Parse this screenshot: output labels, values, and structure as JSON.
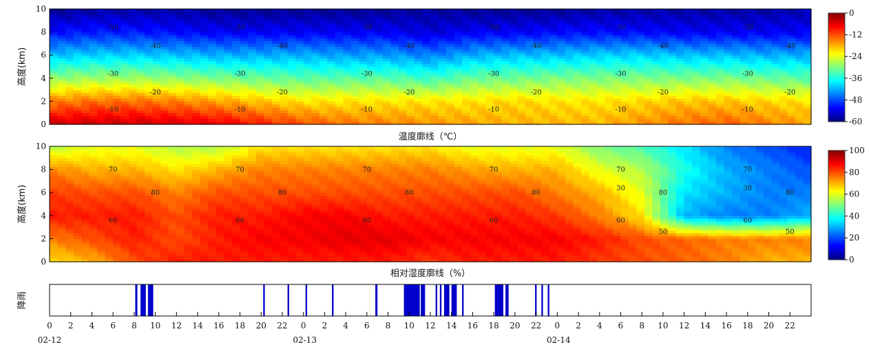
{
  "chart_data": [
    {
      "type": "heatmap",
      "title": "温度廓线（℃）",
      "ylabel": "高度(km)",
      "ylim": [
        0,
        10
      ],
      "yticks": [
        "0",
        "2",
        "4",
        "6",
        "8",
        "10"
      ],
      "x_hours": [
        0,
        4,
        8,
        12,
        16,
        20,
        24,
        28,
        32,
        36,
        40,
        44,
        48,
        52,
        56,
        60,
        64,
        68,
        72
      ],
      "y_km": [
        0,
        2,
        4,
        6,
        8,
        10
      ],
      "values": [
        [
          -4,
          -4,
          -4,
          -5,
          -6,
          -9,
          -12,
          -14,
          -15,
          -16,
          -17,
          -18,
          -18,
          -18,
          -16,
          -14,
          -13,
          -15,
          -17
        ],
        [
          -15,
          -14,
          -14,
          -15,
          -17,
          -19,
          -21,
          -21,
          -21,
          -21,
          -21,
          -20,
          -21,
          -21,
          -20,
          -19,
          -19,
          -20,
          -21
        ],
        [
          -29,
          -28,
          -28,
          -29,
          -30,
          -31,
          -32,
          -32,
          -32,
          -34,
          -31,
          -31,
          -30,
          -30,
          -30,
          -30,
          -30,
          -31,
          -32
        ],
        [
          -41,
          -40,
          -40,
          -41,
          -42,
          -42,
          -42,
          -43,
          -43,
          -45,
          -42,
          -41,
          -41,
          -40,
          -40,
          -41,
          -41,
          -42,
          -42
        ],
        [
          -52,
          -51,
          -51,
          -52,
          -53,
          -53,
          -53,
          -53,
          -53,
          -55,
          -53,
          -53,
          -52,
          -52,
          -52,
          -53,
          -53,
          -53,
          -53
        ],
        [
          -59,
          -58,
          -58,
          -58,
          -59,
          -59,
          -59,
          -59,
          -59,
          -58,
          -59,
          -59,
          -59,
          -58,
          -58,
          -58,
          -58,
          -58,
          -57
        ]
      ],
      "colorbar": {
        "range": [
          -60,
          0
        ],
        "ticks": [
          "0",
          "-12",
          "-24",
          "-36",
          "-48",
          "-60"
        ]
      },
      "contour_labels": [
        "-50",
        "-40",
        "-30",
        "-20",
        "-10"
      ]
    },
    {
      "type": "heatmap",
      "title": "相对湿度廓线（%）",
      "ylabel": "高度(km)",
      "ylim": [
        0,
        10
      ],
      "yticks": [
        "0",
        "2",
        "4",
        "6",
        "8",
        "10"
      ],
      "x_hours": [
        0,
        4,
        8,
        12,
        16,
        20,
        24,
        28,
        32,
        36,
        40,
        44,
        48,
        52,
        56,
        60,
        64,
        68,
        72
      ],
      "y_km": [
        0,
        2,
        4,
        6,
        8,
        10
      ],
      "values": [
        [
          65,
          70,
          80,
          85,
          85,
          85,
          85,
          85,
          85,
          82,
          85,
          85,
          85,
          82,
          80,
          78,
          75,
          70,
          70
        ],
        [
          75,
          80,
          85,
          80,
          85,
          88,
          88,
          90,
          90,
          88,
          88,
          88,
          88,
          85,
          80,
          78,
          75,
          75,
          75
        ],
        [
          85,
          85,
          85,
          80,
          85,
          85,
          88,
          88,
          85,
          85,
          85,
          85,
          82,
          75,
          65,
          30,
          25,
          25,
          30
        ],
        [
          82,
          80,
          80,
          75,
          80,
          80,
          80,
          80,
          80,
          80,
          80,
          80,
          75,
          70,
          60,
          35,
          30,
          25,
          25
        ],
        [
          75,
          70,
          70,
          65,
          70,
          75,
          75,
          75,
          75,
          75,
          72,
          70,
          70,
          60,
          55,
          40,
          30,
          25,
          20
        ],
        [
          55,
          60,
          60,
          55,
          55,
          65,
          65,
          65,
          65,
          65,
          60,
          60,
          60,
          50,
          45,
          35,
          25,
          20,
          15
        ]
      ],
      "colorbar": {
        "range": [
          0,
          100
        ],
        "ticks": [
          "100",
          "80",
          "60",
          "40",
          "20",
          "0"
        ]
      },
      "contour_labels": [
        "70",
        "80",
        "60",
        "50",
        "30"
      ]
    },
    {
      "type": "bar",
      "ylabel": "降雨",
      "rain_intervals_hours": [
        [
          8.1,
          8.3
        ],
        [
          8.6,
          9.1
        ],
        [
          9.3,
          9.8
        ],
        [
          20.2,
          20.35
        ],
        [
          22.5,
          22.65
        ],
        [
          24.2,
          24.35
        ],
        [
          26.7,
          26.85
        ],
        [
          30.8,
          31.0
        ],
        [
          33.5,
          35.0
        ],
        [
          35.1,
          35.5
        ],
        [
          36.5,
          36.65
        ],
        [
          36.9,
          37.05
        ],
        [
          37.3,
          37.8
        ],
        [
          38.0,
          38.5
        ],
        [
          39.0,
          39.15
        ],
        [
          42.1,
          42.9
        ],
        [
          43.1,
          43.4
        ],
        [
          45.9,
          46.05
        ],
        [
          46.5,
          46.65
        ],
        [
          47.1,
          47.25
        ]
      ],
      "xticks": [
        "0",
        "2",
        "4",
        "6",
        "8",
        "10",
        "12",
        "14",
        "16",
        "18",
        "20",
        "22"
      ],
      "dates": [
        "02-12",
        "02-13",
        "02-14"
      ],
      "xlim_hours": [
        0,
        72
      ]
    }
  ]
}
